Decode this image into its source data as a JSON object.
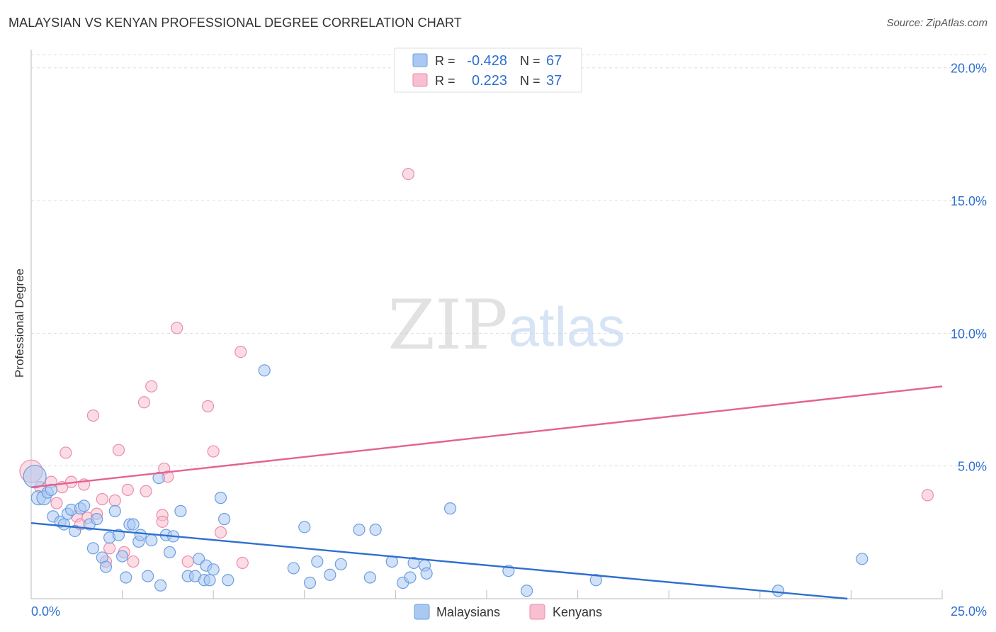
{
  "title": "MALAYSIAN VS KENYAN PROFESSIONAL DEGREE CORRELATION CHART",
  "source": "Source: ZipAtlas.com",
  "watermark": {
    "zip": "ZIP",
    "atlas": "atlas"
  },
  "chart_data": {
    "type": "scatter",
    "title": "MALAYSIAN VS KENYAN PROFESSIONAL DEGREE CORRELATION CHART",
    "ylabel": "Professional Degree",
    "xlabel": "",
    "xlim": [
      0,
      25
    ],
    "ylim": [
      0,
      20.5
    ],
    "x_tick_labels": [
      "0.0%",
      "25.0%"
    ],
    "y_ticks": [
      5,
      10,
      15,
      20
    ],
    "y_tick_labels": [
      "5.0%",
      "10.0%",
      "15.0%",
      "20.0%"
    ],
    "grid": true,
    "legend_position": "top-center",
    "colors": {
      "malaysians_fill": "#a9c9f2",
      "malaysians_edge": "#6c9ee0",
      "malaysians_line": "#2e6fd0",
      "kenyans_fill": "#f7bfd0",
      "kenyans_edge": "#ec8cab",
      "kenyans_line": "#e4628f",
      "stat_text": "#2e6fd0",
      "tick_text": "#2e6fd0",
      "grid": "#dddddd"
    },
    "stats": [
      {
        "r_label": "R =",
        "r_value": "-0.428",
        "n_label": "N =",
        "n_value": "67"
      },
      {
        "r_label": "R =",
        "r_value": "0.223",
        "n_label": "N =",
        "n_value": "37"
      }
    ],
    "series": [
      {
        "name": "Malaysians",
        "trend": {
          "x": [
            0,
            22.4
          ],
          "y": [
            2.85,
            0.0
          ]
        },
        "points": [
          [
            0.1,
            4.6,
            16
          ],
          [
            0.2,
            3.8,
            10
          ],
          [
            0.35,
            3.8,
            10
          ],
          [
            0.45,
            4.0,
            8
          ],
          [
            0.55,
            4.1,
            8
          ],
          [
            0.6,
            3.1,
            8
          ],
          [
            0.8,
            2.9,
            8
          ],
          [
            0.9,
            2.8,
            8
          ],
          [
            1.0,
            3.2,
            8
          ],
          [
            1.1,
            3.35,
            8
          ],
          [
            1.2,
            2.55,
            8
          ],
          [
            1.35,
            3.4,
            8
          ],
          [
            1.45,
            3.5,
            8
          ],
          [
            1.6,
            2.8,
            8
          ],
          [
            1.8,
            3.0,
            8
          ],
          [
            1.7,
            1.9,
            8
          ],
          [
            1.95,
            1.55,
            8
          ],
          [
            2.05,
            1.2,
            8
          ],
          [
            2.15,
            2.3,
            8
          ],
          [
            2.3,
            3.3,
            8
          ],
          [
            2.4,
            2.4,
            8
          ],
          [
            2.5,
            1.6,
            8
          ],
          [
            2.6,
            0.8,
            8
          ],
          [
            2.7,
            2.8,
            8
          ],
          [
            2.8,
            2.8,
            8
          ],
          [
            2.95,
            2.15,
            8
          ],
          [
            3.0,
            2.4,
            8
          ],
          [
            3.2,
            0.85,
            8
          ],
          [
            3.3,
            2.2,
            8
          ],
          [
            3.5,
            4.55,
            8
          ],
          [
            3.55,
            0.5,
            8
          ],
          [
            3.7,
            2.4,
            8
          ],
          [
            3.8,
            1.75,
            8
          ],
          [
            3.9,
            2.35,
            8
          ],
          [
            4.1,
            3.3,
            8
          ],
          [
            4.3,
            0.85,
            8
          ],
          [
            4.5,
            0.85,
            8
          ],
          [
            4.6,
            1.5,
            8
          ],
          [
            4.75,
            0.7,
            8
          ],
          [
            4.9,
            0.7,
            8
          ],
          [
            4.8,
            1.25,
            8
          ],
          [
            5.0,
            1.1,
            8
          ],
          [
            5.2,
            3.8,
            8
          ],
          [
            5.3,
            3.0,
            8
          ],
          [
            5.4,
            0.7,
            8
          ],
          [
            6.4,
            8.6,
            8
          ],
          [
            7.2,
            1.15,
            8
          ],
          [
            7.5,
            2.7,
            8
          ],
          [
            7.65,
            0.6,
            8
          ],
          [
            7.85,
            1.4,
            8
          ],
          [
            8.2,
            0.9,
            8
          ],
          [
            8.5,
            1.3,
            8
          ],
          [
            9.0,
            2.6,
            8
          ],
          [
            9.3,
            0.8,
            8
          ],
          [
            9.45,
            2.6,
            8
          ],
          [
            9.9,
            1.4,
            8
          ],
          [
            10.2,
            0.6,
            8
          ],
          [
            10.5,
            1.35,
            8
          ],
          [
            10.8,
            1.25,
            8
          ],
          [
            10.4,
            0.8,
            8
          ],
          [
            10.85,
            0.95,
            8
          ],
          [
            11.5,
            3.4,
            8
          ],
          [
            13.1,
            1.05,
            8
          ],
          [
            13.6,
            0.3,
            8
          ],
          [
            15.5,
            0.7,
            8
          ],
          [
            20.5,
            0.3,
            8
          ],
          [
            22.8,
            1.5,
            8
          ]
        ]
      },
      {
        "name": "Kenyans",
        "trend": {
          "x": [
            0,
            25
          ],
          "y": [
            4.2,
            8.0
          ]
        },
        "points": [
          [
            0.0,
            4.8,
            16
          ],
          [
            0.25,
            4.2,
            8
          ],
          [
            0.55,
            4.4,
            8
          ],
          [
            0.7,
            3.6,
            8
          ],
          [
            0.85,
            4.2,
            8
          ],
          [
            0.95,
            5.5,
            8
          ],
          [
            1.1,
            4.4,
            8
          ],
          [
            1.25,
            3.1,
            8
          ],
          [
            1.35,
            2.8,
            8
          ],
          [
            1.45,
            4.3,
            8
          ],
          [
            1.55,
            3.05,
            8
          ],
          [
            1.7,
            6.9,
            8
          ],
          [
            1.8,
            3.2,
            8
          ],
          [
            1.95,
            3.75,
            8
          ],
          [
            2.05,
            1.4,
            8
          ],
          [
            2.15,
            1.9,
            8
          ],
          [
            2.3,
            3.7,
            8
          ],
          [
            2.4,
            5.6,
            8
          ],
          [
            2.55,
            1.75,
            8
          ],
          [
            2.65,
            4.1,
            8
          ],
          [
            2.8,
            1.4,
            8
          ],
          [
            3.1,
            7.4,
            8
          ],
          [
            3.15,
            4.05,
            8
          ],
          [
            3.3,
            8.0,
            8
          ],
          [
            3.6,
            3.15,
            8
          ],
          [
            3.6,
            2.9,
            8
          ],
          [
            3.65,
            4.9,
            8
          ],
          [
            3.75,
            4.6,
            8
          ],
          [
            4.0,
            10.2,
            8
          ],
          [
            4.3,
            1.4,
            8
          ],
          [
            4.85,
            7.25,
            8
          ],
          [
            5.0,
            5.55,
            8
          ],
          [
            5.2,
            2.5,
            8
          ],
          [
            5.75,
            9.3,
            8
          ],
          [
            5.8,
            1.35,
            8
          ],
          [
            10.35,
            16.0,
            8
          ],
          [
            24.6,
            3.9,
            8
          ]
        ]
      }
    ]
  }
}
